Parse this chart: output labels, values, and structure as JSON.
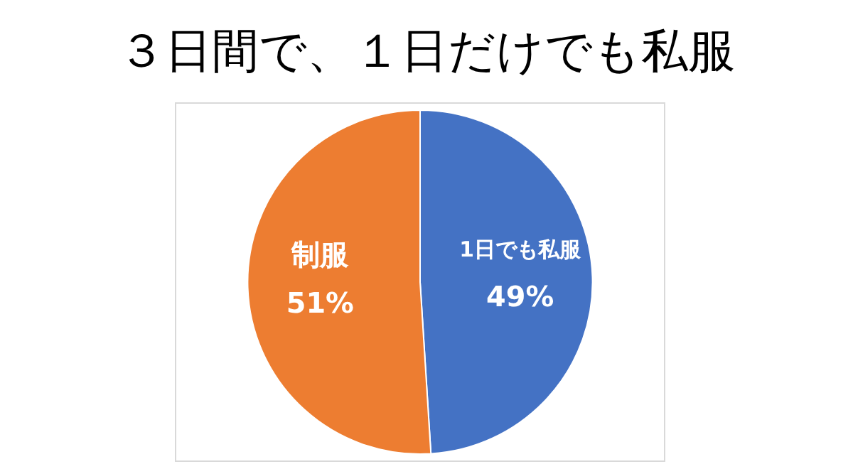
{
  "chart_data": {
    "type": "pie",
    "title": "３日間で、１日だけでも私服",
    "categories": [
      "1日でも私服",
      "制服"
    ],
    "values": [
      49,
      51
    ],
    "colors": [
      "#4472c4",
      "#ed7d31"
    ],
    "value_labels": [
      "49%",
      "51%"
    ],
    "legend": false
  }
}
